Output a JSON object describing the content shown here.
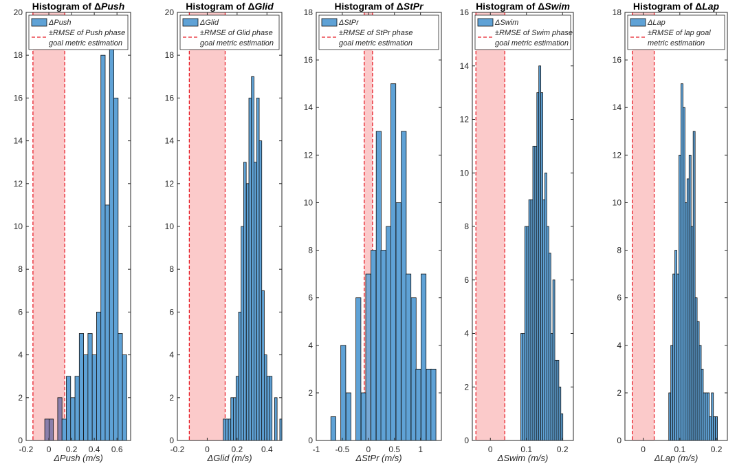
{
  "colors": {
    "bar": "#5fa2d6",
    "bar_edge": "#111111",
    "band": "#fbcaca",
    "line": "#e8202a",
    "overlap": "#8a7fab"
  },
  "chart_data": [
    {
      "type": "bar",
      "title_prefix": "Histogram of Δ",
      "title_var": "Push",
      "xlabel": "ΔPush (m/s)",
      "xlim": [
        -0.2,
        0.72
      ],
      "ylim": [
        0,
        20
      ],
      "xticks": [
        "-0.2",
        "0",
        "0.2",
        "0.4",
        "0.6"
      ],
      "xtick_values": [
        -0.2,
        0,
        0.2,
        0.4,
        0.6
      ],
      "yticks": [
        "0",
        "2",
        "4",
        "6",
        "8",
        "10",
        "12",
        "14",
        "16",
        "18",
        "20"
      ],
      "bin_width": 0.038,
      "bins": [
        [
          -0.036,
          1
        ],
        [
          0.002,
          1
        ],
        [
          0.04,
          0
        ],
        [
          0.078,
          2
        ],
        [
          0.116,
          1
        ],
        [
          0.154,
          3
        ],
        [
          0.192,
          2
        ],
        [
          0.23,
          3
        ],
        [
          0.268,
          5
        ],
        [
          0.306,
          4
        ],
        [
          0.344,
          5
        ],
        [
          0.382,
          4
        ],
        [
          0.42,
          6
        ],
        [
          0.458,
          18
        ],
        [
          0.496,
          11
        ],
        [
          0.534,
          19
        ],
        [
          0.572,
          16
        ],
        [
          0.61,
          5
        ],
        [
          0.648,
          4
        ]
      ],
      "rmse": 0.14,
      "legend_bar": "ΔPush",
      "legend_line_1": "±RMSE of Push phase",
      "legend_line_2": "goal metric estimation"
    },
    {
      "type": "bar",
      "title_prefix": "Histogram of Δ",
      "title_var": "Glid",
      "xlabel": "ΔGlid (m/s)",
      "xlim": [
        -0.2,
        0.5
      ],
      "ylim": [
        0,
        20
      ],
      "xticks": [
        "-0.2",
        "0",
        "0.2",
        "0.4"
      ],
      "xtick_values": [
        -0.2,
        0,
        0.2,
        0.4
      ],
      "yticks": [
        "0",
        "2",
        "4",
        "6",
        "8",
        "10",
        "12",
        "14",
        "16",
        "18",
        "20"
      ],
      "bin_width": 0.0172,
      "bins": [
        [
          0.107,
          1
        ],
        [
          0.124,
          1
        ],
        [
          0.141,
          1
        ],
        [
          0.158,
          2
        ],
        [
          0.175,
          2
        ],
        [
          0.193,
          3
        ],
        [
          0.21,
          6
        ],
        [
          0.227,
          10
        ],
        [
          0.244,
          13
        ],
        [
          0.262,
          12
        ],
        [
          0.279,
          16
        ],
        [
          0.296,
          17
        ],
        [
          0.313,
          13
        ],
        [
          0.331,
          16
        ],
        [
          0.348,
          14
        ],
        [
          0.365,
          7
        ],
        [
          0.382,
          4
        ],
        [
          0.4,
          3
        ],
        [
          0.417,
          3
        ],
        [
          0.434,
          0
        ],
        [
          0.451,
          2
        ],
        [
          0.469,
          0
        ],
        [
          0.486,
          1
        ]
      ],
      "rmse": 0.12,
      "legend_bar": "ΔGlid",
      "legend_line_1": "±RMSE of Glid phase",
      "legend_line_2": "goal metric estimation"
    },
    {
      "type": "bar",
      "title_prefix": "Histogram of Δ",
      "title_var": "StPr",
      "xlabel": "ΔStPr (m/s)",
      "xlim": [
        -1.0,
        1.4
      ],
      "ylim": [
        0,
        18
      ],
      "xticks": [
        "-1",
        "-0.5",
        "0",
        "0.5",
        "1"
      ],
      "xtick_values": [
        -1,
        -0.5,
        0,
        0.5,
        1
      ],
      "yticks": [
        "0",
        "2",
        "4",
        "6",
        "8",
        "10",
        "12",
        "14",
        "16",
        "18"
      ],
      "bin_width": 0.096,
      "bins": [
        [
          -0.72,
          1
        ],
        [
          -0.53,
          4
        ],
        [
          -0.43,
          2
        ],
        [
          -0.24,
          6
        ],
        [
          -0.14,
          2
        ],
        [
          -0.05,
          7
        ],
        [
          0.05,
          8
        ],
        [
          0.15,
          13
        ],
        [
          0.24,
          8
        ],
        [
          0.34,
          9
        ],
        [
          0.43,
          15
        ],
        [
          0.53,
          10
        ],
        [
          0.63,
          13
        ],
        [
          0.72,
          7
        ],
        [
          0.82,
          6
        ],
        [
          0.91,
          3
        ],
        [
          1.01,
          7
        ],
        [
          1.11,
          3
        ],
        [
          1.2,
          3
        ],
        [
          -0.91,
          0
        ]
      ],
      "rmse": 0.08,
      "legend_bar": "ΔStPr",
      "legend_line_1": "±RMSE of StPr phase",
      "legend_line_2": "goal metric estimation"
    },
    {
      "type": "bar",
      "title_prefix": "Histogram of Δ",
      "title_var": "Swim",
      "xlabel": "ΔSwim (m/s)",
      "xlim": [
        -0.05,
        0.23
      ],
      "ylim": [
        0,
        16
      ],
      "xticks": [
        "0",
        "0.1",
        "0.2"
      ],
      "xtick_values": [
        0,
        0.1,
        0.2
      ],
      "yticks": [
        "0",
        "2",
        "4",
        "6",
        "8",
        "10",
        "12",
        "14",
        "16"
      ],
      "bin_width": 0.00555,
      "bins": [
        [
          0.0843,
          4
        ],
        [
          0.0898,
          4
        ],
        [
          0.0954,
          8
        ],
        [
          0.1009,
          8
        ],
        [
          0.1065,
          9
        ],
        [
          0.112,
          9
        ],
        [
          0.1176,
          11
        ],
        [
          0.1231,
          11
        ],
        [
          0.1287,
          13
        ],
        [
          0.1342,
          14
        ],
        [
          0.1398,
          13
        ],
        [
          0.1453,
          9
        ],
        [
          0.1509,
          10
        ],
        [
          0.1564,
          8
        ],
        [
          0.162,
          7
        ],
        [
          0.1675,
          4
        ],
        [
          0.1731,
          6
        ],
        [
          0.1786,
          3
        ],
        [
          0.1842,
          3
        ],
        [
          0.1897,
          2
        ],
        [
          0.1953,
          1
        ]
      ],
      "rmse": 0.04,
      "legend_bar": "ΔSwim",
      "legend_line_1": "±RMSE of Swim phase",
      "legend_line_2": "goal metric estimation"
    },
    {
      "type": "bar",
      "title_prefix": "Histogram of Δ",
      "title_var": "Lap",
      "xlabel": "ΔLap (m/s)",
      "xlim": [
        -0.05,
        0.23
      ],
      "ylim": [
        0,
        18
      ],
      "xticks": [
        "0",
        "0.1",
        "0.2"
      ],
      "xtick_values": [
        0,
        0.1,
        0.2
      ],
      "yticks": [
        "0",
        "2",
        "4",
        "6",
        "8",
        "10",
        "12",
        "14",
        "16",
        "18"
      ],
      "bin_width": 0.00555,
      "bins": [
        [
          0.0698,
          2
        ],
        [
          0.0753,
          4
        ],
        [
          0.0809,
          7
        ],
        [
          0.0864,
          8
        ],
        [
          0.092,
          7
        ],
        [
          0.0975,
          12
        ],
        [
          0.1031,
          15
        ],
        [
          0.1086,
          14
        ],
        [
          0.1142,
          10
        ],
        [
          0.1197,
          11
        ],
        [
          0.1253,
          12
        ],
        [
          0.1308,
          9
        ],
        [
          0.1364,
          13
        ],
        [
          0.1419,
          6
        ],
        [
          0.1475,
          5
        ],
        [
          0.153,
          4
        ],
        [
          0.1586,
          3
        ],
        [
          0.1641,
          2
        ],
        [
          0.1697,
          2
        ],
        [
          0.1752,
          2
        ],
        [
          0.1808,
          1
        ],
        [
          0.1863,
          2
        ],
        [
          0.1919,
          1
        ],
        [
          0.1974,
          1
        ]
      ],
      "rmse": 0.03,
      "legend_bar": "ΔLap",
      "legend_line_1": "±RMSE of lap goal",
      "legend_line_2": "metric estimation"
    }
  ]
}
